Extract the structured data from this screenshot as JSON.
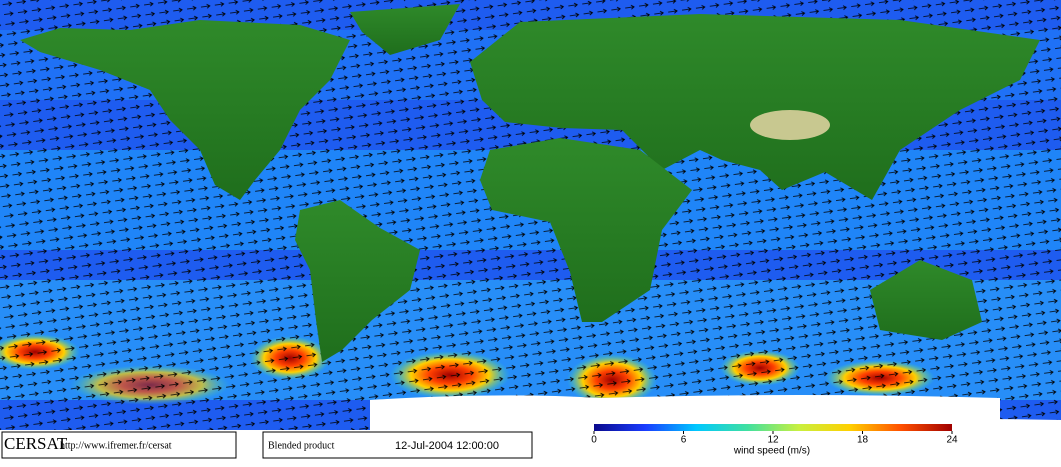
{
  "header": {
    "logo": "CERSAT",
    "url": "http://www.ifremer.fr/cersat",
    "product": "Blended product",
    "date": "12-Jul-2004 12:00:00"
  },
  "colorbar": {
    "label": "wind speed (m/s)",
    "lim": [
      0,
      24
    ],
    "ticks": [
      0,
      6,
      12,
      18,
      24
    ],
    "colors": [
      "#0a0a8c",
      "#1a3cff",
      "#00c8ff",
      "#40e0a0",
      "#c8f040",
      "#ffd000",
      "#ff5000",
      "#a00000"
    ]
  }
}
